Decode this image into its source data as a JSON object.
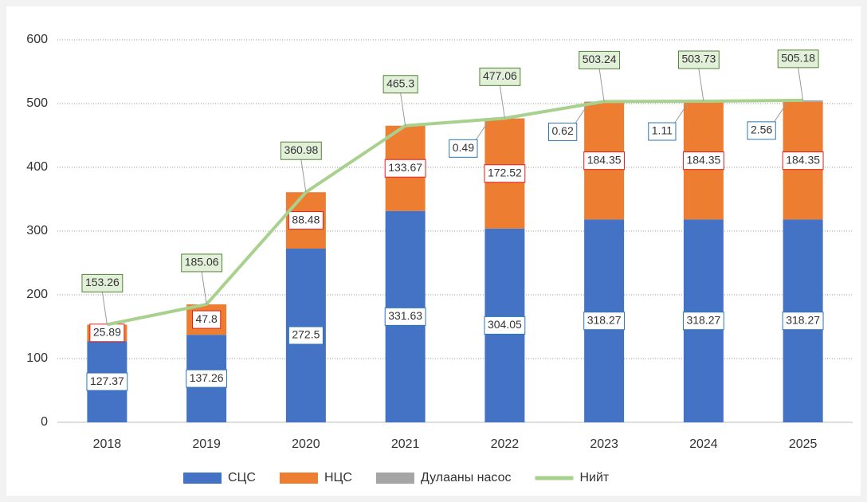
{
  "chart_data": {
    "type": "bar",
    "stacked": true,
    "categories": [
      "2018",
      "2019",
      "2020",
      "2021",
      "2022",
      "2023",
      "2024",
      "2025"
    ],
    "series": [
      {
        "name": "СЦС",
        "color": "#4472c4",
        "values": [
          127.37,
          137.26,
          272.5,
          331.63,
          304.05,
          318.27,
          318.27,
          318.27
        ]
      },
      {
        "name": "НЦС",
        "color": "#ed7d31",
        "values": [
          25.89,
          47.8,
          88.48,
          133.67,
          172.52,
          184.35,
          184.35,
          184.35
        ]
      },
      {
        "name": "Дулааны насос",
        "color": "#a5a5a5",
        "values": [
          null,
          null,
          null,
          null,
          0.49,
          0.62,
          1.11,
          2.56
        ]
      },
      {
        "name": "Нийт",
        "color": "#a9d18e",
        "type": "line",
        "values": [
          153.26,
          185.06,
          360.98,
          465.3,
          477.06,
          503.24,
          503.73,
          505.18
        ]
      }
    ],
    "ylim": [
      0,
      600
    ],
    "yticks": [
      0,
      100,
      200,
      300,
      400,
      500,
      600
    ],
    "grid": true,
    "legend": "bottom"
  }
}
